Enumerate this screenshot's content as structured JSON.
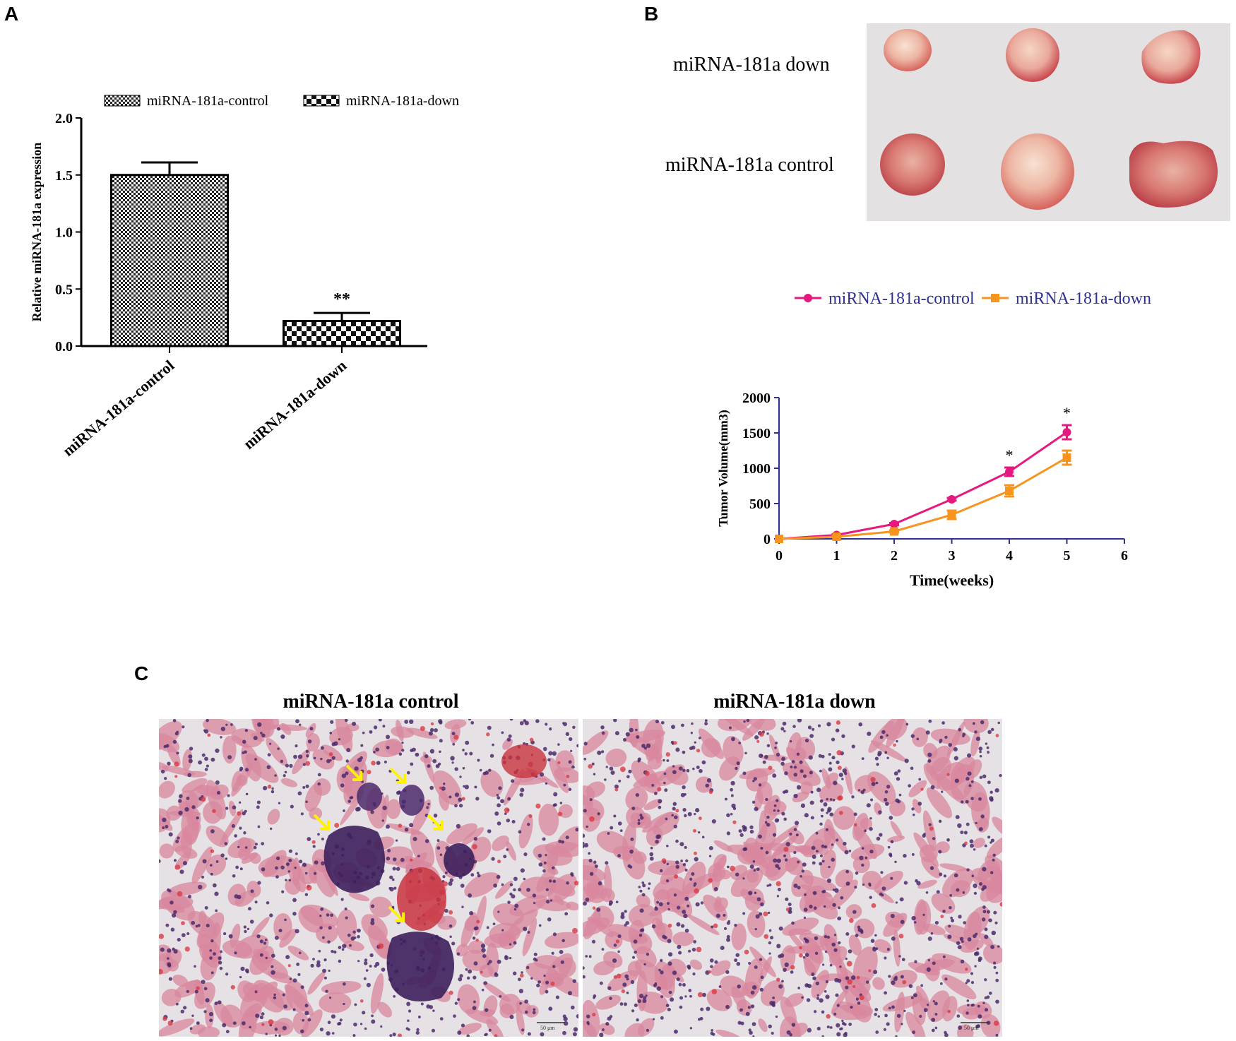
{
  "panels": {
    "a_letter": "A",
    "b_letter": "B",
    "c_letter": "C"
  },
  "photo_b": {
    "label_down": "miRNA-181a down",
    "label_control": "miRNA-181a control"
  },
  "histology_c": {
    "left_title": "miRNA-181a control",
    "right_title": "miRNA-181a down",
    "left_scale": "50 μm",
    "right_scale": "50 μm"
  },
  "colors": {
    "control_line": "#E6197F",
    "down_line": "#F7941D",
    "legend_text": "#2E3192",
    "arrow": "#FFF200",
    "tissue_bg": "#E6E1E4",
    "tissue_pink": "#D8879E",
    "nuclei": "#4B2A6B"
  },
  "chart_data": [
    {
      "type": "bar",
      "ylabel": "Relative miRNA-181a expression",
      "ylim": [
        0,
        2.0
      ],
      "yticks": [
        "0.0",
        "0.5",
        "1.0",
        "1.5",
        "2.0"
      ],
      "categories": [
        "miRNA-181a-control",
        "miRNA-181a-down"
      ],
      "values": [
        1.5,
        0.22
      ],
      "errors": [
        0.11,
        0.07
      ],
      "legend": [
        "miRNA-181a-control",
        "miRNA-181a-down"
      ],
      "annotations": [
        {
          "category": "miRNA-181a-down",
          "text": "**"
        }
      ]
    },
    {
      "type": "line",
      "xlabel": "Time(weeks)",
      "ylabel": "Tumor Volume(mm3)",
      "xlim": [
        0,
        6
      ],
      "ylim": [
        0,
        2000
      ],
      "xticks": [
        "0",
        "1",
        "2",
        "3",
        "4",
        "5",
        "6"
      ],
      "yticks": [
        "0",
        "500",
        "1000",
        "1500",
        "2000"
      ],
      "x": [
        0,
        1,
        2,
        3,
        4,
        5
      ],
      "series": [
        {
          "name": "miRNA-181a-control",
          "values": [
            0,
            55,
            210,
            560,
            950,
            1510
          ],
          "errors": [
            0,
            10,
            15,
            20,
            60,
            100
          ],
          "marker": "circle"
        },
        {
          "name": "miRNA-181a-down",
          "values": [
            0,
            30,
            105,
            340,
            680,
            1150
          ],
          "errors": [
            0,
            8,
            15,
            60,
            80,
            100
          ],
          "marker": "square"
        }
      ],
      "annotations": [
        {
          "x": 4,
          "text": "*"
        },
        {
          "x": 5,
          "text": "*"
        }
      ]
    }
  ]
}
